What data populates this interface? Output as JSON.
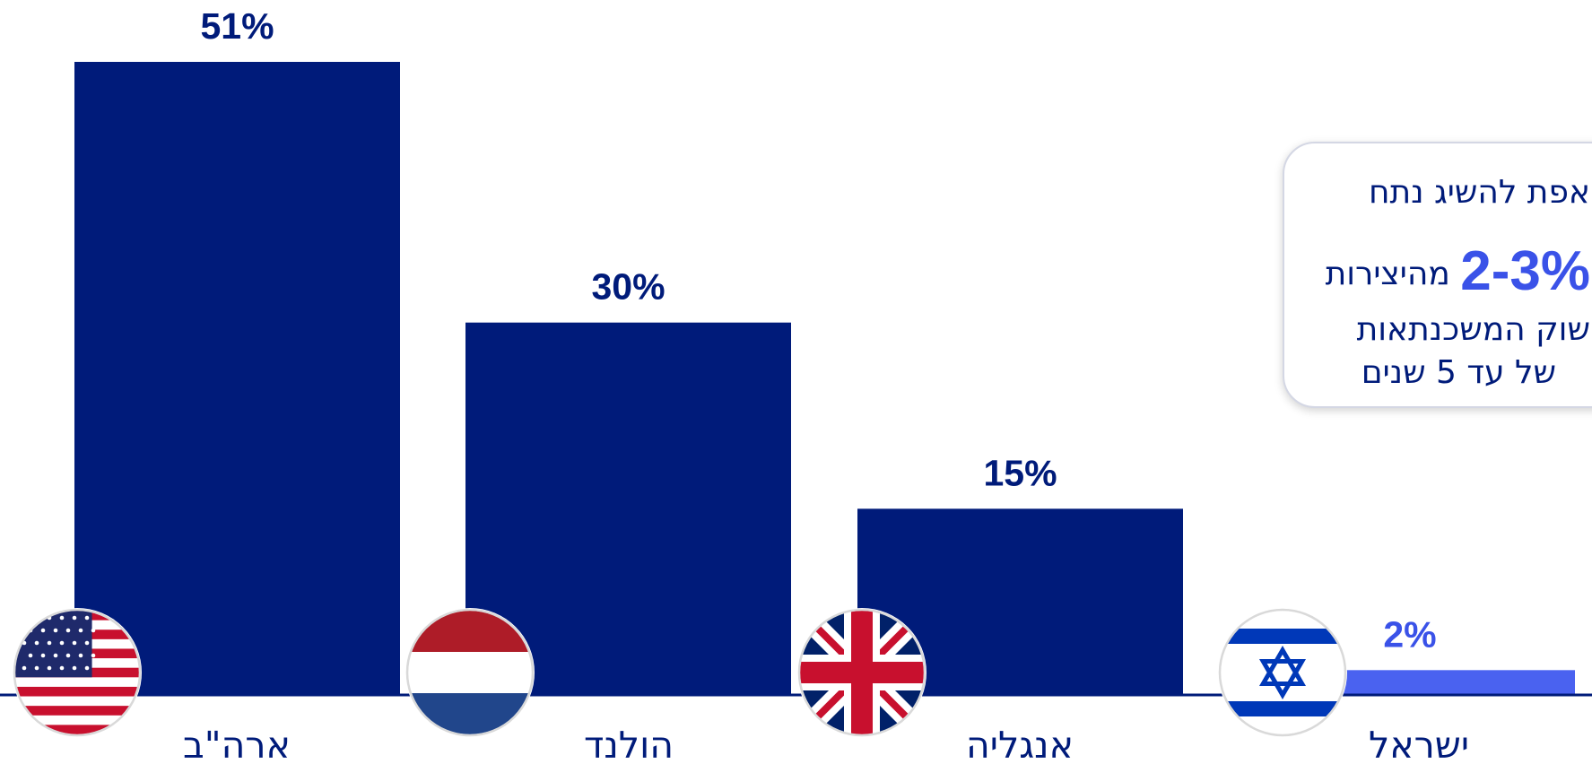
{
  "chart_data": {
    "type": "bar",
    "categories": [
      "ארה\"ב",
      "הולנד",
      "אנגליה",
      "ישראל"
    ],
    "values": [
      51,
      30,
      15,
      2
    ],
    "data_labels": [
      "51%",
      "30%",
      "15%",
      "2%"
    ],
    "flags": [
      "us-flag-icon",
      "netherlands-flag-icon",
      "uk-flag-icon",
      "israel-flag-icon"
    ],
    "ylim": [
      0,
      51
    ],
    "grid": false,
    "legend": "none",
    "colors": {
      "bar": "#001b7a",
      "highlight_bar": "#4a62f0",
      "label": "#001b7a",
      "highlight_label": "#3a52e8",
      "axis": "#001b7a"
    }
  },
  "callout": {
    "line1": "אפת להשיג נתח",
    "line2_big": "2-3%",
    "line2_text": "מהיצירות",
    "line3": "שוק המשכנתאות",
    "line4": "של עד 5 שנים"
  }
}
